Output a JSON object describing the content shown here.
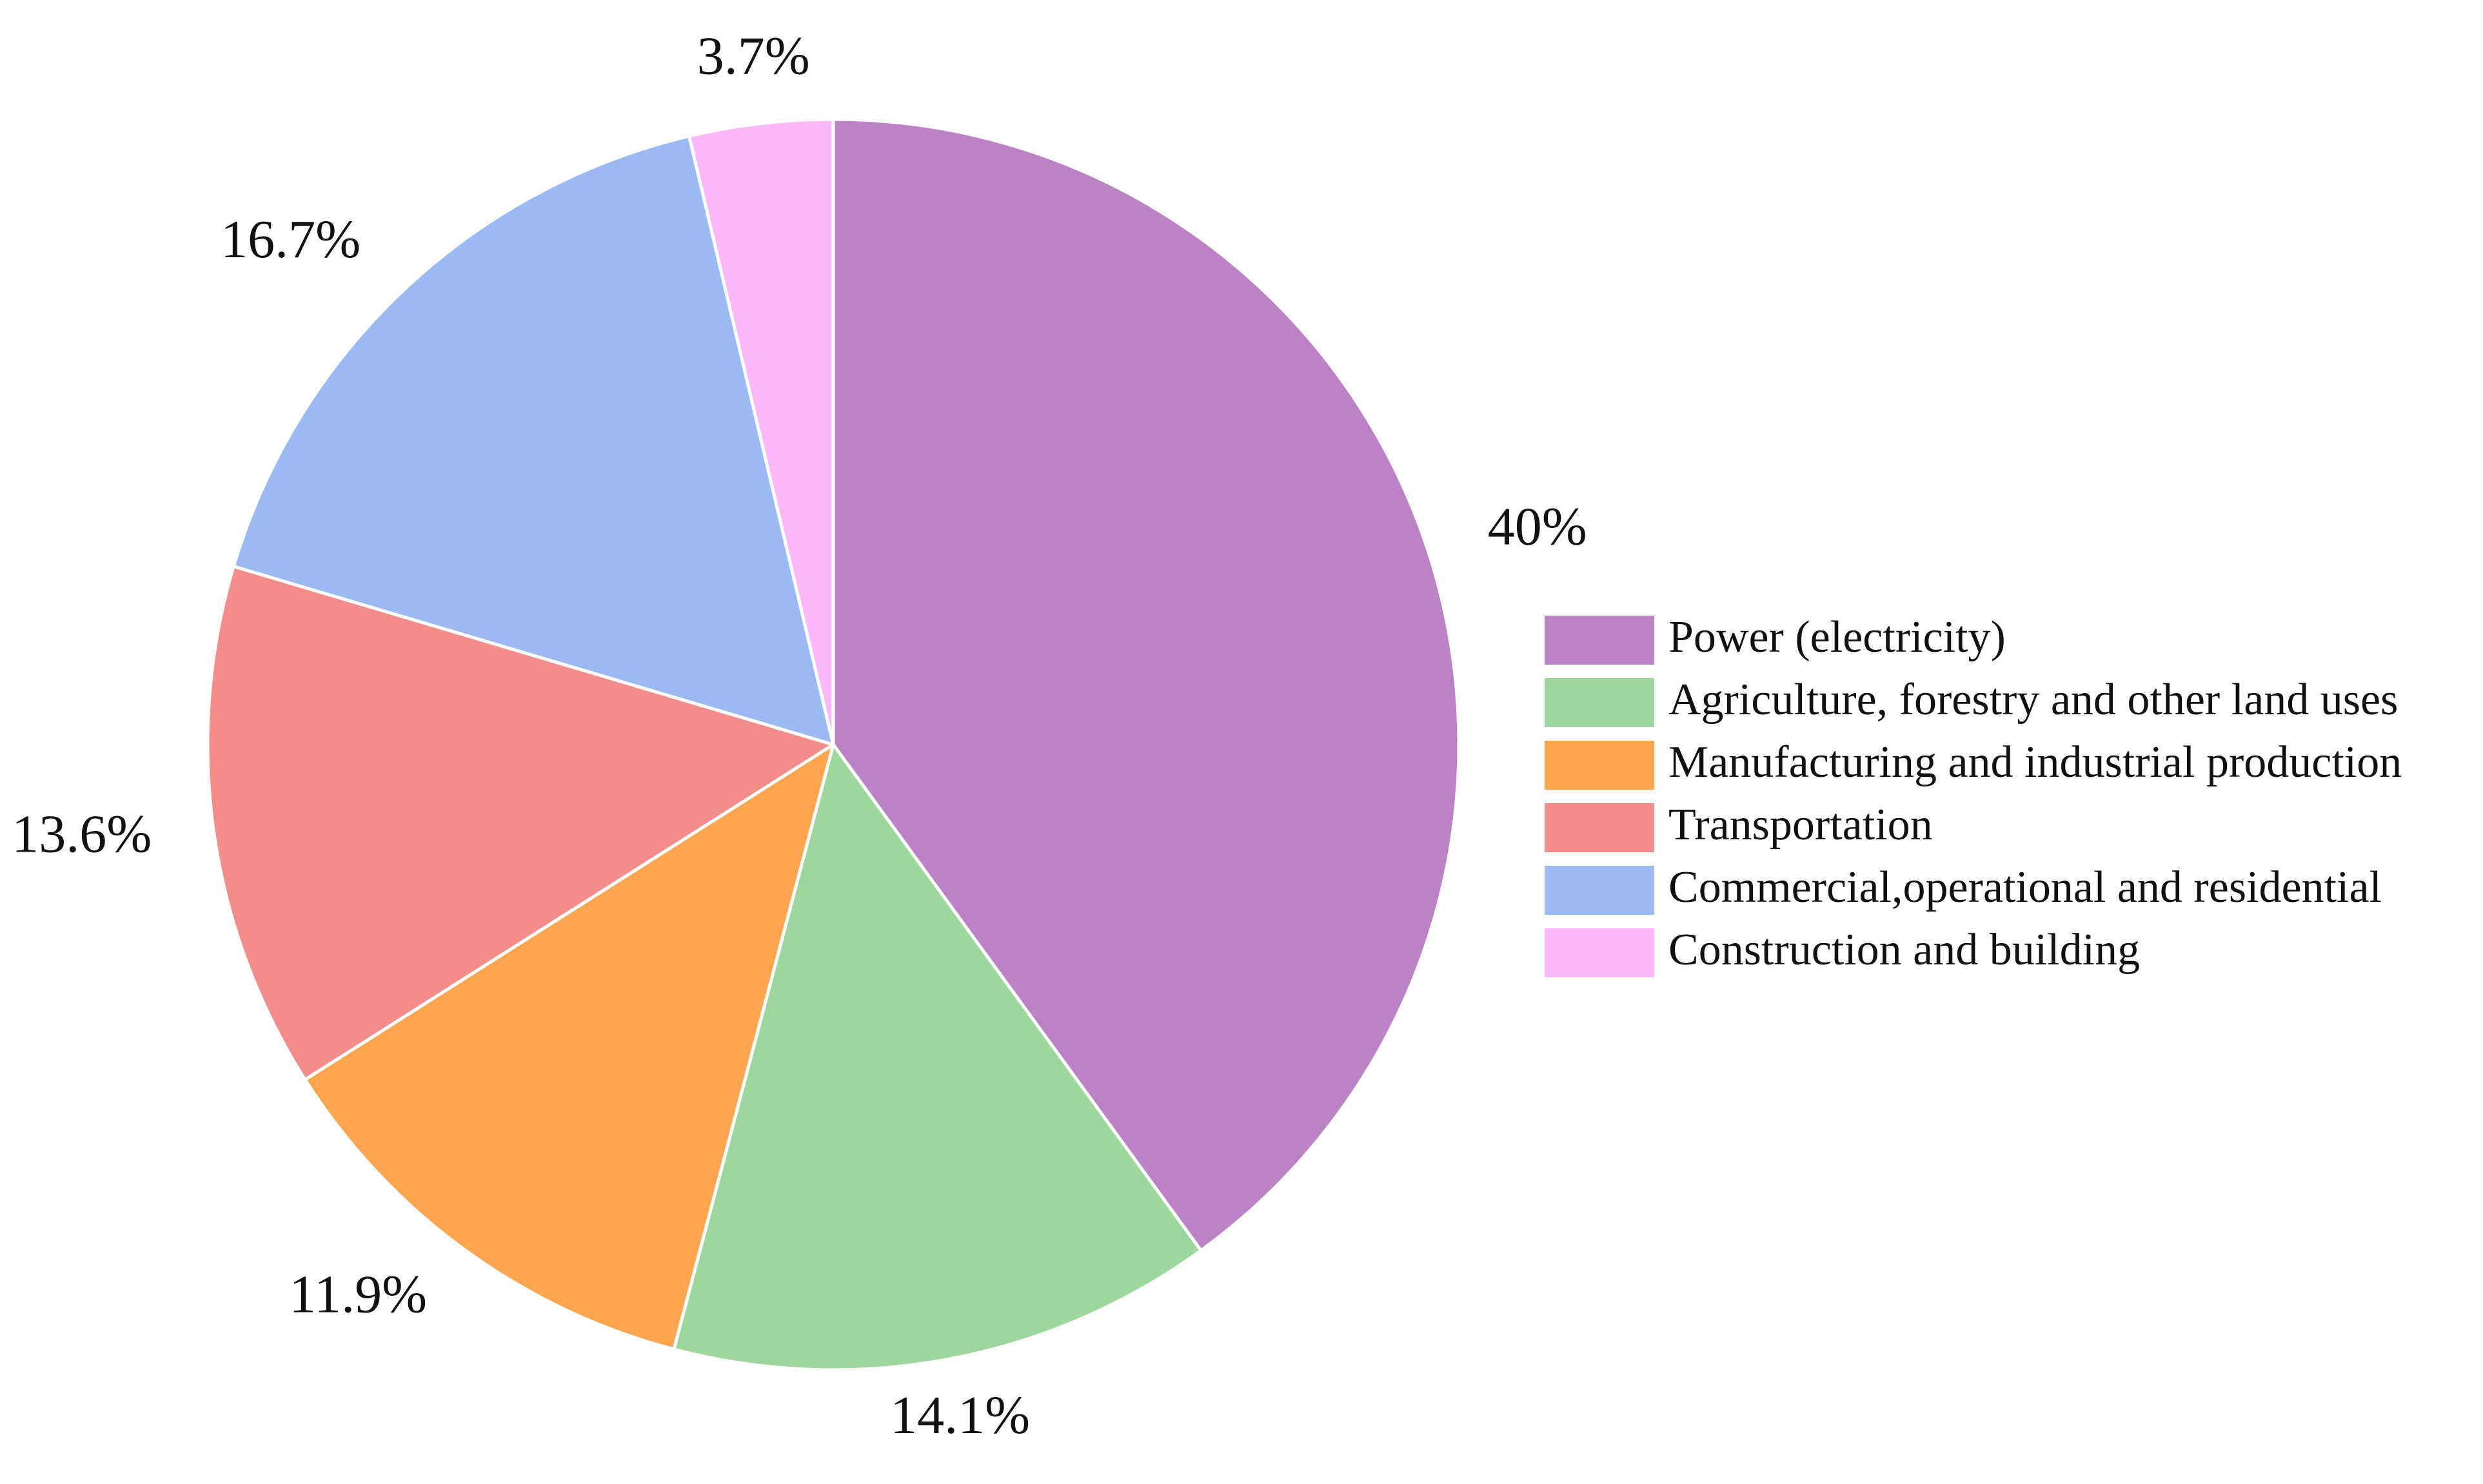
{
  "chart_data": {
    "type": "pie",
    "title": "",
    "start": "12 o'clock",
    "direction": "clockwise",
    "legend_position": "right",
    "slices": [
      {
        "label": "Power (electricity)",
        "value": 40,
        "display": "40%",
        "color": "#BB82C5"
      },
      {
        "label": "Agriculture, forestry and other land uses",
        "value": 14.1,
        "display": "14.1%",
        "color": "#9ED79C"
      },
      {
        "label": "Manufacturing and industrial production",
        "value": 11.9,
        "display": "11.9%",
        "color": "#FDA64F"
      },
      {
        "label": "Transportation",
        "value": 13.6,
        "display": "13.6%",
        "color": "#F28D8B"
      },
      {
        "label": "Commercial,operational and residential",
        "value": 16.7,
        "display": "16.7%",
        "color": "#9BBAF3"
      },
      {
        "label": "Construction and building",
        "value": 3.7,
        "display": "3.7%",
        "color": "#FDB8FB"
      }
    ]
  }
}
